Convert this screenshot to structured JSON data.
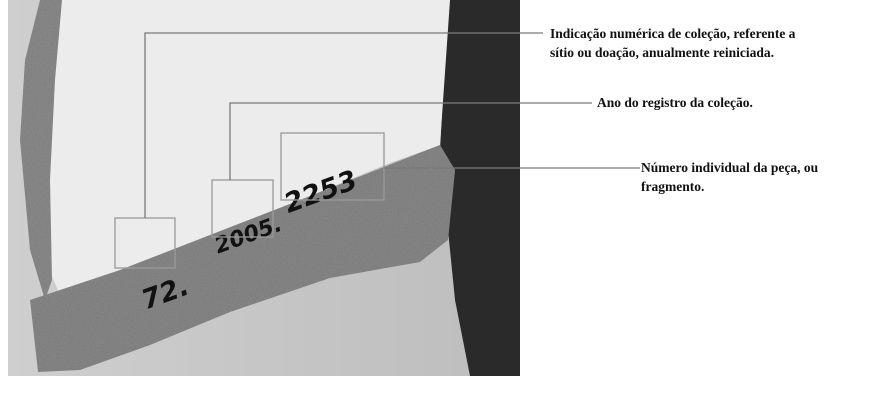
{
  "photo": {
    "markings": [
      "72.",
      "2005.",
      "2253"
    ]
  },
  "annotations": [
    {
      "lines": [
        "Indicação numérica de coleção, referente a",
        "sítio ou doação, anualmente reiniciada."
      ]
    },
    {
      "lines": [
        "Ano do registro da coleção."
      ]
    },
    {
      "lines": [
        "Número individual da peça, ou",
        "fragmento."
      ]
    }
  ]
}
